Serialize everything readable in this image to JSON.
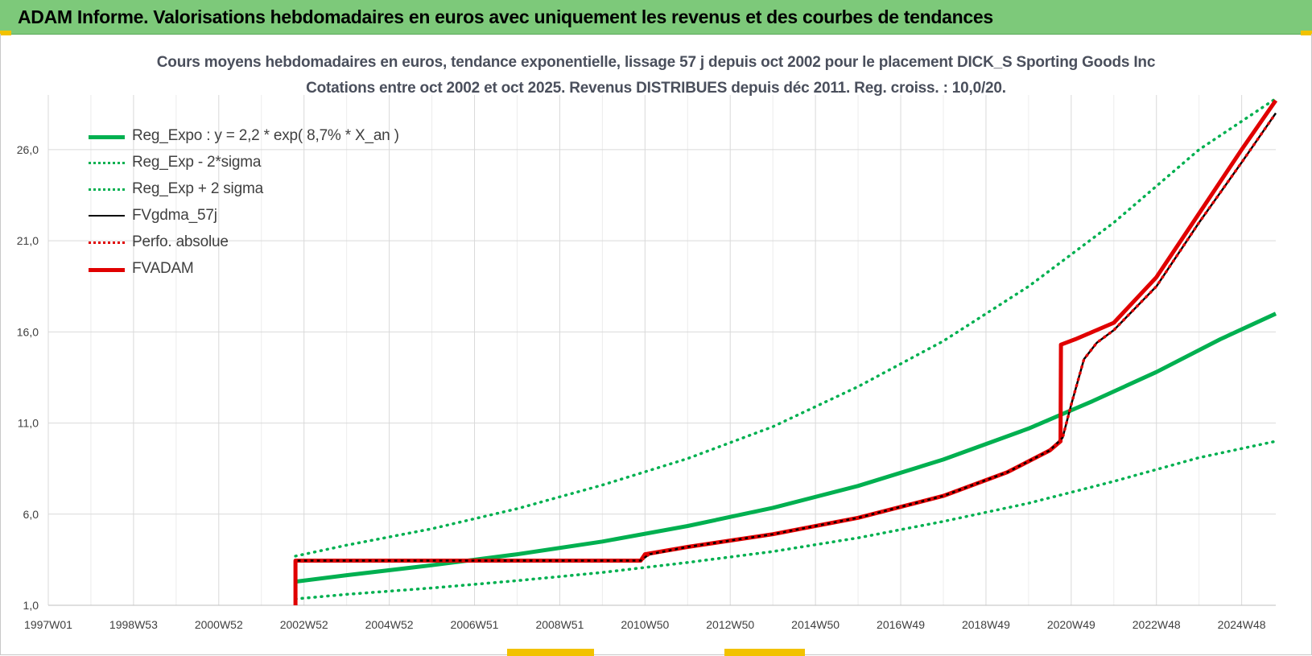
{
  "banner": {
    "title": "ADAM Informe. Valorisations hebdomadaires en euros avec uniquement les revenus et des courbes de tendances"
  },
  "colors": {
    "banner_bg": "#7dc97a",
    "reg_green": "#00b050",
    "black": "#000000",
    "red": "#e00000",
    "accent_yellow": "#f2c200"
  },
  "chart_data": {
    "type": "line",
    "title": "Cours moyens hebdomadaires en euros, tendance exponentielle, lissage 57 j depuis oct 2002 pour le placement DICK_S Sporting Goods Inc",
    "subtitle": "Cotations entre oct 2002 et oct 2025.  Revenus DISTRIBUES depuis déc 2011. Reg. croiss. : 10,0/20.",
    "xlabel": "",
    "ylabel": "",
    "x_range": [
      1997.0,
      2025.8
    ],
    "ylim": [
      1.0,
      29.0
    ],
    "y_ticks": [
      1.0,
      6.0,
      11.0,
      16.0,
      21.0,
      26.0
    ],
    "y_tick_labels": [
      "1,0",
      "6,0",
      "11,0",
      "16,0",
      "21,0",
      "26,0"
    ],
    "x_ticks": [
      1997.0,
      1999.0,
      2001.0,
      2003.0,
      2005.0,
      2007.0,
      2009.0,
      2011.0,
      2013.0,
      2015.0,
      2017.0,
      2019.0,
      2021.0,
      2023.0,
      2025.0
    ],
    "x_tick_labels": [
      "1997W01",
      "1998W53",
      "2000W52",
      "2002W52",
      "2004W52",
      "2006W51",
      "2008W51",
      "2010W50",
      "2012W50",
      "2014W50",
      "2016W49",
      "2018W49",
      "2020W49",
      "2022W48",
      "2024W48"
    ],
    "grid": true,
    "legend_position": "top-left",
    "series": [
      {
        "name": "Reg_Expo : y = 2,2 * exp( 8,7% *  X_an )",
        "style": "solid-thick",
        "color": "#00b050",
        "x": [
          2002.8,
          2004,
          2006,
          2008,
          2010,
          2012,
          2014,
          2016,
          2018,
          2020,
          2021.5,
          2023,
          2024.5,
          2025.8
        ],
        "y": [
          2.3,
          2.65,
          3.2,
          3.8,
          4.5,
          5.35,
          6.35,
          7.55,
          9.0,
          10.7,
          12.2,
          13.8,
          15.6,
          17.0
        ]
      },
      {
        "name": "Reg_Exp - 2*sigma",
        "style": "dotted",
        "color": "#00b050",
        "x": [
          2002.8,
          2004,
          2006,
          2008,
          2010,
          2012,
          2014,
          2016,
          2018,
          2020,
          2022,
          2024,
          2025.8
        ],
        "y": [
          1.35,
          1.6,
          1.95,
          2.35,
          2.8,
          3.35,
          3.95,
          4.7,
          5.6,
          6.6,
          7.8,
          9.1,
          10.0
        ]
      },
      {
        "name": "Reg_Exp + 2 sigma",
        "style": "dotted",
        "color": "#00b050",
        "x": [
          2002.8,
          2004,
          2006,
          2008,
          2010,
          2012,
          2014,
          2016,
          2018,
          2020,
          2022,
          2024,
          2025.8
        ],
        "y": [
          3.7,
          4.3,
          5.2,
          6.3,
          7.6,
          9.05,
          10.8,
          13.0,
          15.5,
          18.5,
          22.0,
          26.0,
          28.8
        ]
      },
      {
        "name": "FVgdma_57j",
        "style": "solid",
        "color": "#000000",
        "x": [
          2002.8,
          2005,
          2008,
          2010.9,
          2011.1,
          2012,
          2014,
          2016,
          2018,
          2019.5,
          2020.5,
          2020.8,
          2021.0,
          2021.3,
          2021.6,
          2022,
          2023,
          2024,
          2025,
          2025.8
        ],
        "y": [
          3.45,
          3.45,
          3.45,
          3.45,
          3.8,
          4.2,
          4.9,
          5.8,
          7.0,
          8.3,
          9.5,
          10.2,
          12.0,
          14.5,
          15.4,
          16.1,
          18.5,
          22.0,
          25.3,
          28.0
        ]
      },
      {
        "name": "Perfo. absolue",
        "style": "dotted",
        "color": "#e00000",
        "x": [
          2002.8,
          2005,
          2008,
          2010.9,
          2011.1,
          2012,
          2014,
          2016,
          2018,
          2019.5,
          2020.5,
          2020.8,
          2021.0,
          2021.3,
          2021.6,
          2022,
          2023,
          2024,
          2025,
          2025.8
        ],
        "y": [
          3.45,
          3.45,
          3.45,
          3.45,
          3.8,
          4.2,
          4.9,
          5.8,
          7.0,
          8.3,
          9.5,
          10.2,
          12.0,
          14.5,
          15.4,
          16.1,
          18.5,
          22.0,
          25.3,
          28.0
        ]
      },
      {
        "name": "FVADAM",
        "style": "solid-thick-step",
        "color": "#e00000",
        "x": [
          2002.8,
          2002.8,
          2010.9,
          2011.0,
          2012,
          2014,
          2016,
          2018,
          2019.5,
          2020.5,
          2020.75,
          2020.76,
          2021.1,
          2022,
          2023,
          2024,
          2025,
          2025.8
        ],
        "y": [
          1.0,
          3.45,
          3.45,
          3.8,
          4.2,
          4.9,
          5.8,
          7.0,
          8.3,
          9.5,
          10.0,
          15.3,
          15.6,
          16.5,
          19.0,
          22.5,
          26.0,
          28.7
        ]
      }
    ]
  }
}
